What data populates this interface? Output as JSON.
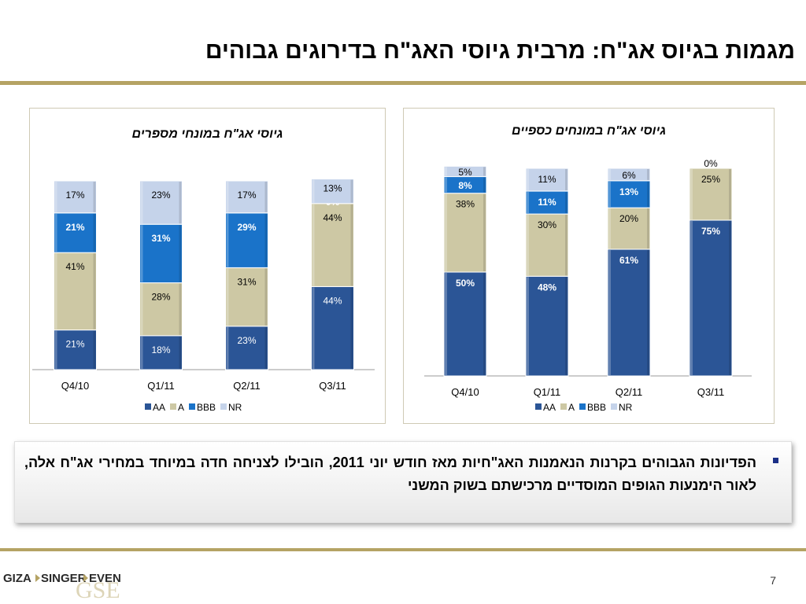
{
  "title": "מגמות בגיוס אג\"ח: מרבית גיוסי האג\"ח בדירוגים גבוהים",
  "bullet_text": "הפדיונות הגבוהים בקרנות הנאמנות האג\"חיות מאז חודש יוני 2011, הובילו לצניחה חדה במיוחד במחירי אג\"ח אלה, לאור הימנעות הגופים המוסדיים מרכישתם בשוק המשני",
  "page_number": "7",
  "logo": {
    "text1": "GIZA",
    "text2": "SINGER",
    "text3": "EVEN",
    "text4": "GSE"
  },
  "colors": {
    "AA": "#2b5596",
    "A": "#cdc8a4",
    "BBB": "#1a73c9",
    "NR": "#c5d3ea",
    "gold": "#b5a364"
  },
  "chart_data": [
    {
      "type": "bar",
      "stacked": true,
      "title": "גיוסי אג\"ח במונחי מספרים",
      "categories": [
        "Q4/10",
        "Q1/11",
        "Q2/11",
        "Q3/11"
      ],
      "series": [
        {
          "name": "AA",
          "values": [
            21,
            18,
            23,
            44
          ],
          "labels": [
            "21%",
            "18%",
            "23%",
            "44%"
          ]
        },
        {
          "name": "A",
          "values": [
            41,
            28,
            31,
            44
          ],
          "labels": [
            "41%",
            "28%",
            "31%",
            "44%"
          ]
        },
        {
          "name": "BBB",
          "values": [
            21,
            31,
            29,
            0
          ],
          "labels": [
            "21%",
            "31%",
            "29%",
            "0%"
          ]
        },
        {
          "name": "NR",
          "values": [
            17,
            23,
            17,
            13
          ],
          "labels": [
            "17%",
            "23%",
            "17%",
            "13%"
          ]
        }
      ],
      "ylim": [
        0,
        100
      ],
      "legend": "bottom",
      "grid": false
    },
    {
      "type": "bar",
      "stacked": true,
      "title": "גיוסי אג\"ח במונחים כספיים",
      "categories": [
        "Q4/10",
        "Q1/11",
        "Q2/11",
        "Q3/11"
      ],
      "series": [
        {
          "name": "AA",
          "values": [
            50,
            48,
            61,
            75
          ],
          "labels": [
            "50%",
            "48%",
            "61%",
            "75%"
          ]
        },
        {
          "name": "A",
          "values": [
            38,
            30,
            20,
            25
          ],
          "labels": [
            "38%",
            "30%",
            "20%",
            "25%"
          ]
        },
        {
          "name": "BBB",
          "values": [
            8,
            11,
            13,
            0
          ],
          "labels": [
            "8%",
            "11%",
            "13%",
            ""
          ]
        },
        {
          "name": "NR",
          "values": [
            5,
            11,
            6,
            0
          ],
          "labels": [
            "5%",
            "11%",
            "6%",
            "0%"
          ]
        }
      ],
      "ylim": [
        0,
        100
      ],
      "legend": "bottom",
      "grid": false
    }
  ]
}
